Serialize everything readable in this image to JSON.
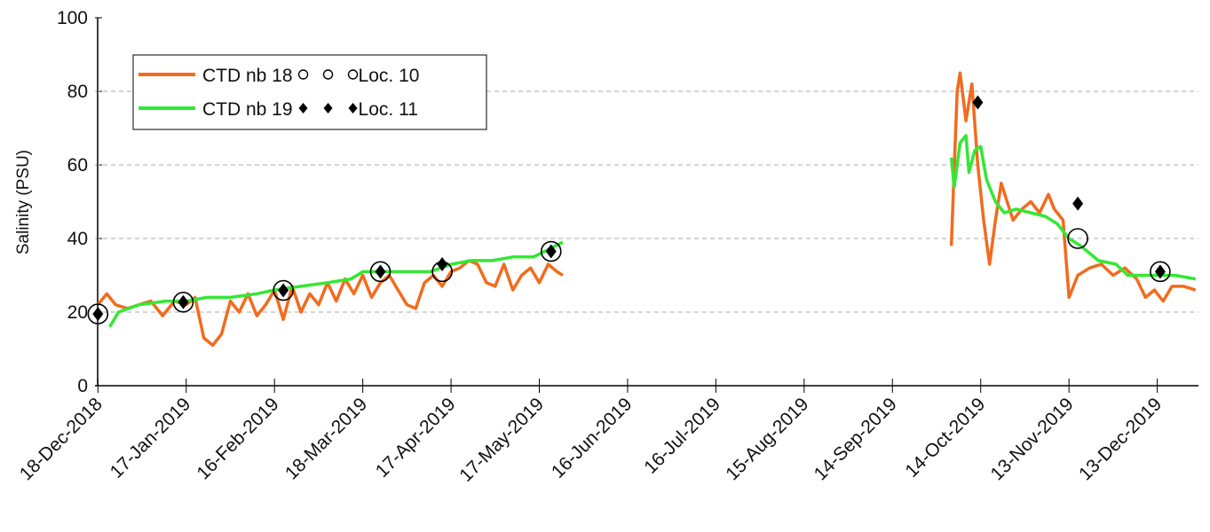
{
  "chart_data": {
    "type": "line",
    "y_label": "Salinity (PSU)",
    "xlim": [
      "2018-12-17",
      "2019-12-27"
    ],
    "xticks": [
      {
        "value": "2018-12-18",
        "label": "18-Dec-2018"
      },
      {
        "value": "2019-01-17",
        "label": "17-Jan-2019"
      },
      {
        "value": "2019-02-16",
        "label": "16-Feb-2019"
      },
      {
        "value": "2019-03-18",
        "label": "18-Mar-2019"
      },
      {
        "value": "2019-04-17",
        "label": "17-Apr-2019"
      },
      {
        "value": "2019-05-17",
        "label": "17-May-2019"
      },
      {
        "value": "2019-06-16",
        "label": "16-Jun-2019"
      },
      {
        "value": "2019-07-16",
        "label": "16-Jul-2019"
      },
      {
        "value": "2019-08-15",
        "label": "15-Aug-2019"
      },
      {
        "value": "2019-09-14",
        "label": "14-Sep-2019"
      },
      {
        "value": "2019-10-14",
        "label": "14-Oct-2019"
      },
      {
        "value": "2019-11-13",
        "label": "13-Nov-2019"
      },
      {
        "value": "2019-12-13",
        "label": "13-Dec-2019"
      }
    ],
    "ylim": [
      0,
      100
    ],
    "yticks": [
      0,
      20,
      40,
      60,
      80,
      100
    ],
    "grid": true,
    "legend": "upper left",
    "series": [
      {
        "name": "CTD nb 18",
        "mode": "line",
        "color": "#f26b1d",
        "x": [
          "2018-12-18",
          "2018-12-21",
          "2018-12-24",
          "2018-12-28",
          "2019-01-01",
          "2019-01-05",
          "2019-01-09",
          "2019-01-13",
          "2019-01-17",
          "2019-01-20",
          "2019-01-23",
          "2019-01-26",
          "2019-01-29",
          "2019-02-01",
          "2019-02-04",
          "2019-02-07",
          "2019-02-10",
          "2019-02-13",
          "2019-02-16",
          "2019-02-19",
          "2019-02-22",
          "2019-02-25",
          "2019-02-28",
          "2019-03-03",
          "2019-03-06",
          "2019-03-09",
          "2019-03-12",
          "2019-03-15",
          "2019-03-18",
          "2019-03-21",
          "2019-03-24",
          "2019-03-27",
          "2019-03-30",
          "2019-04-02",
          "2019-04-05",
          "2019-04-08",
          "2019-04-11",
          "2019-04-14",
          "2019-04-17",
          "2019-04-20",
          "2019-04-23",
          "2019-04-26",
          "2019-04-29",
          "2019-05-02",
          "2019-05-05",
          "2019-05-08",
          "2019-05-11",
          "2019-05-14",
          "2019-05-17",
          "2019-05-20",
          "2019-05-23",
          "2019-05-25",
          "2019-06-15",
          "2019-10-04",
          "2019-10-06",
          "2019-10-07",
          "2019-10-09",
          "2019-10-11",
          "2019-10-13",
          "2019-10-15",
          "2019-10-17",
          "2019-10-19",
          "2019-10-21",
          "2019-10-23",
          "2019-10-25",
          "2019-10-28",
          "2019-10-31",
          "2019-11-03",
          "2019-11-06",
          "2019-11-08",
          "2019-11-11",
          "2019-11-13",
          "2019-11-16",
          "2019-11-20",
          "2019-11-24",
          "2019-11-28",
          "2019-12-02",
          "2019-12-06",
          "2019-12-09",
          "2019-12-12",
          "2019-12-15",
          "2019-12-18",
          "2019-12-22",
          "2019-12-26"
        ],
        "values": [
          22,
          25,
          22,
          21,
          22,
          23,
          19,
          23,
          22,
          24,
          13,
          11,
          14,
          23,
          20,
          25,
          19,
          22,
          26,
          18,
          27,
          20,
          25,
          22,
          28,
          23,
          29,
          25,
          30,
          24,
          28,
          30,
          26,
          22,
          21,
          28,
          30,
          27,
          31,
          32,
          34,
          33,
          28,
          27,
          33,
          26,
          30,
          32,
          28,
          33,
          31,
          30,
          null,
          38,
          80,
          85,
          72,
          82,
          60,
          45,
          33,
          45,
          55,
          50,
          45,
          48,
          50,
          47,
          52,
          48,
          45,
          24,
          30,
          32,
          33,
          30,
          32,
          29,
          24,
          26,
          23,
          27,
          27,
          26
        ]
      },
      {
        "name": "CTD nb 19",
        "mode": "line",
        "color": "#33e833",
        "x": [
          "2018-12-22",
          "2018-12-25",
          "2019-01-01",
          "2019-01-10",
          "2019-01-17",
          "2019-01-24",
          "2019-02-01",
          "2019-02-10",
          "2019-02-16",
          "2019-02-25",
          "2019-03-06",
          "2019-03-14",
          "2019-03-18",
          "2019-03-25",
          "2019-04-02",
          "2019-04-10",
          "2019-04-17",
          "2019-04-24",
          "2019-05-01",
          "2019-05-08",
          "2019-05-15",
          "2019-05-20",
          "2019-05-25",
          "2019-06-15",
          "2019-10-04",
          "2019-10-05",
          "2019-10-07",
          "2019-10-09",
          "2019-10-10",
          "2019-10-12",
          "2019-10-14",
          "2019-10-16",
          "2019-10-19",
          "2019-10-22",
          "2019-10-26",
          "2019-10-31",
          "2019-11-05",
          "2019-11-09",
          "2019-11-13",
          "2019-11-17",
          "2019-11-23",
          "2019-11-29",
          "2019-12-03",
          "2019-12-09",
          "2019-12-15",
          "2019-12-19",
          "2019-12-26"
        ],
        "values": [
          16,
          20,
          22,
          23,
          23,
          24,
          24,
          25,
          26,
          27,
          28,
          29,
          31,
          31,
          31,
          31,
          33,
          34,
          34,
          35,
          35,
          37,
          39,
          null,
          62,
          54,
          66,
          68,
          58,
          64,
          65,
          56,
          50,
          47,
          48,
          47,
          46,
          44,
          40,
          38,
          34,
          33,
          30,
          30,
          30,
          30,
          29
        ]
      },
      {
        "name": "Loc. 10",
        "mode": "markers",
        "marker": "circle",
        "color": "#000000",
        "x": [
          "2018-12-18",
          "2019-01-16",
          "2019-02-19",
          "2019-03-24",
          "2019-04-14",
          "2019-05-21",
          "2019-11-16",
          "2019-12-14"
        ],
        "values": [
          19.5,
          22.7,
          25.9,
          31,
          31,
          36.5,
          40,
          31
        ]
      },
      {
        "name": "Loc. 11",
        "mode": "markers",
        "marker": "diamond",
        "color": "#000000",
        "x": [
          "2018-12-18",
          "2019-01-16",
          "2019-02-19",
          "2019-03-24",
          "2019-04-14",
          "2019-05-21",
          "2019-10-13",
          "2019-11-16",
          "2019-12-14"
        ],
        "values": [
          19.5,
          22.7,
          25.9,
          31,
          33,
          36.5,
          77,
          49.5,
          31
        ]
      }
    ]
  }
}
